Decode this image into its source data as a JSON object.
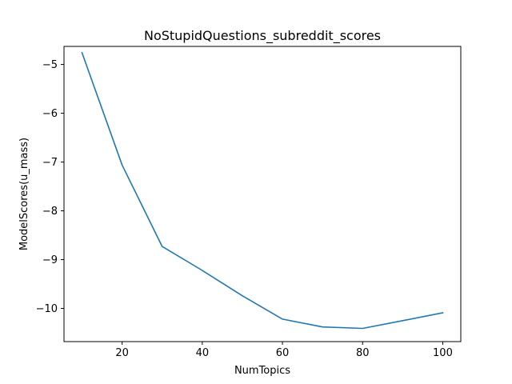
{
  "chart_data": {
    "type": "line",
    "title": "NoStupidQuestions_subreddit_scores",
    "xlabel": "NumTopics",
    "ylabel": "ModelScores(u_mass)",
    "xlim": [
      5.5,
      104.5
    ],
    "ylim": [
      -10.68,
      -4.63
    ],
    "xticks": [
      20,
      40,
      60,
      80,
      100
    ],
    "yticks": [
      -10,
      -9,
      -8,
      -7,
      -6,
      -5
    ],
    "grid": false,
    "legend": "none",
    "series": [
      {
        "color": "#1f77b4",
        "x": [
          10,
          20,
          30,
          40,
          50,
          60,
          70,
          80,
          90,
          100
        ],
        "y": [
          -4.76,
          -7.06,
          -8.73,
          -9.22,
          -9.74,
          -10.22,
          -10.38,
          -10.41,
          -10.25,
          -10.09
        ]
      }
    ]
  }
}
